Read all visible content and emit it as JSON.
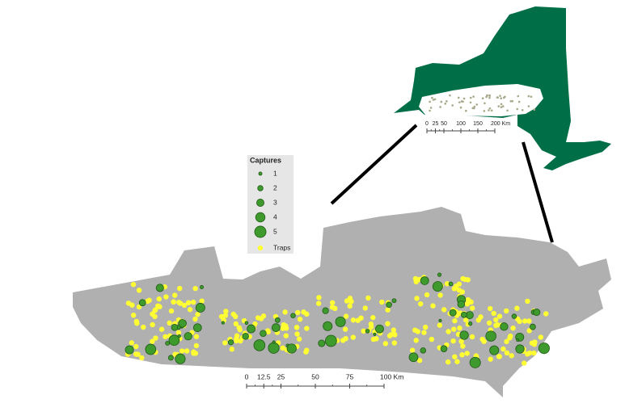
{
  "legend": {
    "title": "Captures",
    "classes": [
      1,
      2,
      3,
      4,
      5
    ],
    "traps_label": "Traps"
  },
  "scale_bar": {
    "ticks": [
      0,
      12.5,
      25,
      50,
      75,
      {
        "value": 100,
        "label": "100 Km"
      }
    ]
  },
  "inset_scale_bar": {
    "ticks": [
      0,
      25,
      50,
      100,
      150,
      {
        "value": 200,
        "label": "200 Km"
      }
    ]
  }
}
